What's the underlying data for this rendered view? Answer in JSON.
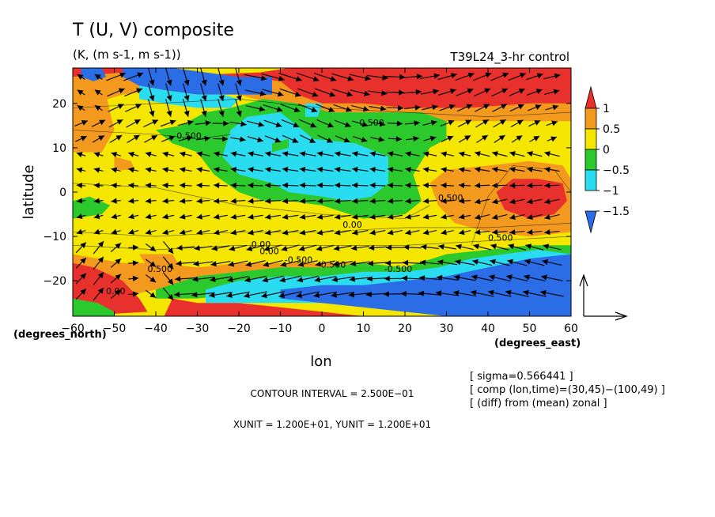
{
  "chart_data": {
    "type": "heatmap",
    "title": "T (U, V) composite",
    "subtitle": "(K, (m s-1, m s-1))",
    "experiment_label": "T39L24_3-hr control",
    "xlabel": "lon",
    "ylabel": "latitude",
    "x_unit_label": "(degrees_east)",
    "y_unit_label": "(degrees_north)",
    "xlim": [
      -60,
      60
    ],
    "ylim": [
      -28,
      28
    ],
    "x_ticks": [
      "-60",
      "-50",
      "-40",
      "-30",
      "-20",
      "-10",
      "0",
      "10",
      "20",
      "30",
      "40",
      "50",
      "60"
    ],
    "y_ticks": [
      "20",
      "10",
      "0",
      "-10",
      "-20"
    ],
    "colorbar": {
      "levels": [
        1.0,
        0.5,
        0,
        -0.5,
        -1,
        -1.5
      ],
      "labels": [
        "1",
        "0.5",
        "0",
        "−0.5",
        "−1",
        "−1.5"
      ],
      "colors": [
        "#e8302c",
        "#f39a1e",
        "#f5e600",
        "#2cc92c",
        "#29dcf0",
        "#2b6de6"
      ]
    },
    "contour_labels": [
      "0.500",
      "0.500",
      "0.500",
      "0.500",
      "0.00",
      "0.00",
      "0.00",
      "0.00",
      "-0.500",
      "-0.500",
      "-0.500",
      "0.500"
    ],
    "info_lines": [
      "[ sigma=0.566441 ]",
      "[ comp (lon,time)=(30,45)−(100,49) ]",
      "[ (diff) from (mean) zonal ]"
    ],
    "contour_interval": "CONTOUR INTERVAL = 2.500E−01",
    "vector_units": "XUNIT = 1.200E+01, YUNIT = 1.200E+01",
    "regions": [
      {
        "level": 1.0,
        "lon_range": [
          -10,
          60
        ],
        "lat_range": [
          18,
          28
        ]
      },
      {
        "level": 1.0,
        "lon_range": [
          42,
          60
        ],
        "lat_range": [
          -5,
          3
        ]
      },
      {
        "level": 1.0,
        "lon_range": [
          -60,
          -52
        ],
        "lat_range": [
          -24,
          -16
        ]
      },
      {
        "level": -0.5,
        "lon_range": [
          -22,
          22
        ],
        "lat_range": [
          -4,
          14
        ]
      },
      {
        "level": -1.5,
        "lon_range": [
          -48,
          -12
        ],
        "lat_range": [
          22,
          28
        ]
      },
      {
        "level": -1.5,
        "lon_range": [
          30,
          60
        ],
        "lat_range": [
          -28,
          -14
        ]
      }
    ]
  },
  "palette": {
    "red": "#e8302c",
    "orange": "#f39a1e",
    "yellow": "#f5e600",
    "green": "#2cc92c",
    "cyan": "#29dcf0",
    "blue": "#2b6de6"
  }
}
